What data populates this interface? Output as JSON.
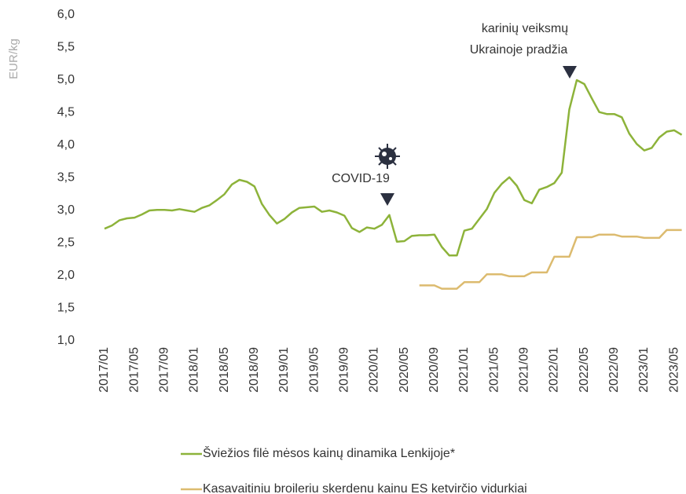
{
  "chart_data": {
    "type": "line",
    "y_label": "EUR/kg",
    "annotations": [
      "COVID-19",
      "karinių veiksmų",
      "Ukrainoje pradžia"
    ],
    "categories": [
      "2017/01",
      null,
      null,
      null,
      "2017/05",
      null,
      null,
      null,
      "2017/09",
      null,
      null,
      null,
      "2018/01",
      null,
      null,
      null,
      "2018/05",
      null,
      null,
      null,
      "2018/09",
      null,
      null,
      null,
      "2019/01",
      null,
      null,
      null,
      "2019/05",
      null,
      null,
      null,
      "2019/09",
      null,
      null,
      null,
      "2020/01",
      null,
      null,
      null,
      "2020/05",
      null,
      null,
      null,
      "2020/09",
      null,
      null,
      null,
      "2021/01",
      null,
      null,
      null,
      "2021/05",
      null,
      null,
      null,
      "2021/09",
      null,
      null,
      null,
      "2022/01",
      null,
      null,
      null,
      "2022/05",
      null,
      null,
      null,
      "2022/09",
      null,
      null,
      null,
      "2023/01",
      null,
      null,
      null,
      "2023/05",
      null
    ],
    "series": [
      {
        "name": "Šviežios filė mėsos kainų dinamika Lenkijoje*",
        "color": "#8db33a",
        "values": [
          2.72,
          2.77,
          2.85,
          2.88,
          2.89,
          2.94,
          3.0,
          3.01,
          3.01,
          3.0,
          3.02,
          3.0,
          2.98,
          3.04,
          3.08,
          3.16,
          3.25,
          3.4,
          3.47,
          3.44,
          3.37,
          3.1,
          2.93,
          2.8,
          2.87,
          2.97,
          3.04,
          3.05,
          3.06,
          2.98,
          3.0,
          2.97,
          2.92,
          2.73,
          2.67,
          2.74,
          2.72,
          2.78,
          2.93,
          2.52,
          2.53,
          2.61,
          2.62,
          2.62,
          2.63,
          2.44,
          2.31,
          2.31,
          2.69,
          2.72,
          2.87,
          3.02,
          3.27,
          3.41,
          3.51,
          3.38,
          3.16,
          3.11,
          3.32,
          3.36,
          3.42,
          3.58,
          4.55,
          5.0,
          4.94,
          4.72,
          4.51,
          4.48,
          4.48,
          4.43,
          4.18,
          4.02,
          3.92,
          3.96,
          4.12,
          4.21,
          4.23,
          4.16
        ]
      },
      {
        "name": "Kasavaitiniu broileriu skerdenu kainu ES ketvirčio vidurkiai",
        "color": "#dcbb6f",
        "values": [
          null,
          null,
          null,
          null,
          null,
          null,
          null,
          null,
          null,
          null,
          null,
          null,
          null,
          null,
          null,
          null,
          null,
          null,
          null,
          null,
          null,
          null,
          null,
          null,
          null,
          null,
          null,
          null,
          null,
          null,
          null,
          null,
          null,
          null,
          null,
          null,
          null,
          null,
          null,
          null,
          null,
          null,
          1.85,
          1.85,
          1.85,
          1.8,
          1.8,
          1.8,
          1.9,
          1.9,
          1.9,
          2.02,
          2.02,
          2.02,
          1.99,
          1.99,
          1.99,
          2.05,
          2.05,
          2.05,
          2.29,
          2.29,
          2.29,
          2.59,
          2.59,
          2.59,
          2.63,
          2.63,
          2.63,
          2.6,
          2.6,
          2.6,
          2.58,
          2.58,
          2.58,
          2.7,
          2.7,
          2.7
        ]
      }
    ],
    "ylim": [
      1,
      6
    ],
    "yticks": [
      {
        "value": 1,
        "label": "1,0"
      },
      {
        "value": 1.5,
        "label": "1,5"
      },
      {
        "value": 2,
        "label": "2,0"
      },
      {
        "value": 2.5,
        "label": "2,5"
      },
      {
        "value": 3,
        "label": "3,0"
      },
      {
        "value": 3.5,
        "label": "3,5"
      },
      {
        "value": 4,
        "label": "4,0"
      },
      {
        "value": 4.5,
        "label": "4,5"
      },
      {
        "value": 5,
        "label": "5,0"
      },
      {
        "value": 5.5,
        "label": "5,5"
      },
      {
        "value": 6,
        "label": "6,0"
      }
    ],
    "grid": false
  }
}
